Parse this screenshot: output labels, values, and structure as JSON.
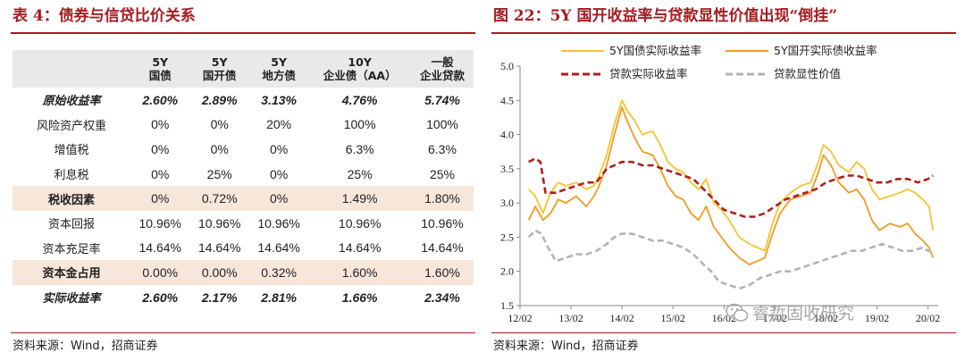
{
  "left_panel": {
    "title": "表 4：债券与信贷比价关系",
    "source": "资料来源：Wind，招商证券",
    "table": {
      "headers": [
        [
          "",
          ""
        ],
        [
          "5Y",
          "国债"
        ],
        [
          "5Y",
          "国开债"
        ],
        [
          "5Y",
          "地方债"
        ],
        [
          "10Y",
          "企业债（AA）"
        ],
        [
          "一般",
          "企业贷款"
        ]
      ],
      "rows": [
        {
          "label": "原始收益率",
          "style": "bold-it",
          "cells": [
            "2.60%",
            "2.89%",
            "3.13%",
            "4.76%",
            "5.74%"
          ]
        },
        {
          "label": "风险资产权重",
          "style": "",
          "cells": [
            "0%",
            "0%",
            "20%",
            "100%",
            "100%"
          ]
        },
        {
          "label": "增值税",
          "style": "",
          "cells": [
            "0%",
            "0%",
            "0%",
            "6.3%",
            "6.3%"
          ]
        },
        {
          "label": "利息税",
          "style": "",
          "cells": [
            "0%",
            "25%",
            "0%",
            "25%",
            "25%"
          ]
        },
        {
          "label": "税收因素",
          "style": "shaded",
          "cells": [
            "0%",
            "0.72%",
            "0%",
            "1.49%",
            "1.80%"
          ]
        },
        {
          "label": "资本回报",
          "style": "",
          "cells": [
            "10.96%",
            "10.96%",
            "10.96%",
            "10.96%",
            "10.96%"
          ]
        },
        {
          "label": "资本充足率",
          "style": "",
          "cells": [
            "14.64%",
            "14.64%",
            "14.64%",
            "14.64%",
            "14.64%"
          ]
        },
        {
          "label": "资本金占用",
          "style": "shaded",
          "cells": [
            "0.00%",
            "0.00%",
            "0.32%",
            "1.60%",
            "1.60%"
          ]
        },
        {
          "label": "实际收益率",
          "style": "bold-it",
          "cells": [
            "2.60%",
            "2.17%",
            "2.81%",
            "1.66%",
            "2.34%"
          ]
        }
      ]
    }
  },
  "right_panel": {
    "title": "图 22：5Y 国开收益率与贷款显性价值出现“倒挂”",
    "source": "资料来源：Wind，招商证券",
    "watermark": "睿哲固收研究",
    "chart_data": {
      "type": "line",
      "x_ticks": [
        "12/02",
        "13/02",
        "14/02",
        "15/02",
        "16/02",
        "17/02",
        "18/02",
        "19/02",
        "20/02"
      ],
      "ylim": [
        1.5,
        5.0
      ],
      "y_ticks": [
        "1.5",
        "2.0",
        "2.5",
        "3.0",
        "3.5",
        "4.0",
        "4.5",
        "5.0"
      ],
      "legend_placement": "top",
      "grid": false,
      "series": [
        {
          "name": "5Y国债实际收益率",
          "color": "#f5c431",
          "dash": "solid",
          "values": [
            [
              2012.17,
              3.2
            ],
            [
              2012.3,
              3.1
            ],
            [
              2012.45,
              2.85
            ],
            [
              2012.6,
              3.15
            ],
            [
              2012.75,
              3.3
            ],
            [
              2012.9,
              3.25
            ],
            [
              2013.1,
              3.3
            ],
            [
              2013.3,
              3.2
            ],
            [
              2013.45,
              3.25
            ],
            [
              2013.55,
              3.4
            ],
            [
              2013.7,
              3.7
            ],
            [
              2013.85,
              4.15
            ],
            [
              2014.0,
              4.5
            ],
            [
              2014.1,
              4.35
            ],
            [
              2014.25,
              4.2
            ],
            [
              2014.4,
              4.0
            ],
            [
              2014.6,
              4.05
            ],
            [
              2014.75,
              3.85
            ],
            [
              2014.9,
              3.6
            ],
            [
              2015.05,
              3.5
            ],
            [
              2015.2,
              3.45
            ],
            [
              2015.35,
              3.3
            ],
            [
              2015.5,
              3.2
            ],
            [
              2015.65,
              3.35
            ],
            [
              2015.8,
              3.0
            ],
            [
              2015.95,
              2.9
            ],
            [
              2016.1,
              2.75
            ],
            [
              2016.3,
              2.5
            ],
            [
              2016.5,
              2.4
            ],
            [
              2016.65,
              2.35
            ],
            [
              2016.8,
              2.3
            ],
            [
              2016.95,
              2.7
            ],
            [
              2017.1,
              3.0
            ],
            [
              2017.3,
              3.15
            ],
            [
              2017.5,
              3.25
            ],
            [
              2017.7,
              3.3
            ],
            [
              2017.85,
              3.6
            ],
            [
              2017.95,
              3.85
            ],
            [
              2018.1,
              3.75
            ],
            [
              2018.25,
              3.55
            ],
            [
              2018.45,
              3.45
            ],
            [
              2018.6,
              3.6
            ],
            [
              2018.75,
              3.5
            ],
            [
              2018.9,
              3.2
            ],
            [
              2019.05,
              3.05
            ],
            [
              2019.25,
              3.1
            ],
            [
              2019.45,
              3.15
            ],
            [
              2019.6,
              3.2
            ],
            [
              2019.75,
              3.15
            ],
            [
              2019.9,
              3.05
            ],
            [
              2020.02,
              2.95
            ],
            [
              2020.1,
              2.6
            ]
          ]
        },
        {
          "name": "5Y国开实际债收益率",
          "color": "#f29a22",
          "dash": "solid",
          "values": [
            [
              2012.17,
              2.75
            ],
            [
              2012.3,
              2.95
            ],
            [
              2012.45,
              2.75
            ],
            [
              2012.6,
              2.85
            ],
            [
              2012.75,
              3.05
            ],
            [
              2012.9,
              3.0
            ],
            [
              2013.1,
              3.1
            ],
            [
              2013.3,
              2.95
            ],
            [
              2013.45,
              3.1
            ],
            [
              2013.55,
              3.25
            ],
            [
              2013.7,
              3.55
            ],
            [
              2013.85,
              4.0
            ],
            [
              2014.0,
              4.4
            ],
            [
              2014.1,
              4.2
            ],
            [
              2014.25,
              3.95
            ],
            [
              2014.4,
              3.75
            ],
            [
              2014.6,
              3.7
            ],
            [
              2014.75,
              3.5
            ],
            [
              2014.9,
              3.25
            ],
            [
              2015.05,
              3.1
            ],
            [
              2015.2,
              3.05
            ],
            [
              2015.35,
              2.85
            ],
            [
              2015.5,
              2.75
            ],
            [
              2015.65,
              2.95
            ],
            [
              2015.8,
              2.65
            ],
            [
              2015.95,
              2.5
            ],
            [
              2016.1,
              2.35
            ],
            [
              2016.3,
              2.2
            ],
            [
              2016.5,
              2.1
            ],
            [
              2016.65,
              2.15
            ],
            [
              2016.8,
              2.2
            ],
            [
              2016.95,
              2.55
            ],
            [
              2017.1,
              2.85
            ],
            [
              2017.3,
              3.05
            ],
            [
              2017.5,
              3.1
            ],
            [
              2017.7,
              3.15
            ],
            [
              2017.85,
              3.45
            ],
            [
              2017.95,
              3.7
            ],
            [
              2018.1,
              3.55
            ],
            [
              2018.25,
              3.3
            ],
            [
              2018.45,
              3.15
            ],
            [
              2018.6,
              3.2
            ],
            [
              2018.75,
              3.05
            ],
            [
              2018.9,
              2.75
            ],
            [
              2019.05,
              2.6
            ],
            [
              2019.25,
              2.7
            ],
            [
              2019.45,
              2.65
            ],
            [
              2019.6,
              2.7
            ],
            [
              2019.75,
              2.55
            ],
            [
              2019.9,
              2.45
            ],
            [
              2020.02,
              2.35
            ],
            [
              2020.1,
              2.2
            ]
          ]
        },
        {
          "name": "贷款实际收益率",
          "color": "#b01e1e",
          "dash": "dashed",
          "values": [
            [
              2012.17,
              3.6
            ],
            [
              2012.3,
              3.65
            ],
            [
              2012.4,
              3.6
            ],
            [
              2012.5,
              3.15
            ],
            [
              2012.7,
              3.15
            ],
            [
              2012.9,
              3.2
            ],
            [
              2013.1,
              3.25
            ],
            [
              2013.3,
              3.3
            ],
            [
              2013.5,
              3.3
            ],
            [
              2013.7,
              3.5
            ],
            [
              2013.85,
              3.55
            ],
            [
              2014.0,
              3.6
            ],
            [
              2014.2,
              3.6
            ],
            [
              2014.4,
              3.55
            ],
            [
              2014.6,
              3.55
            ],
            [
              2014.8,
              3.5
            ],
            [
              2015.0,
              3.45
            ],
            [
              2015.2,
              3.4
            ],
            [
              2015.4,
              3.35
            ],
            [
              2015.6,
              3.2
            ],
            [
              2015.8,
              3.05
            ],
            [
              2016.0,
              2.9
            ],
            [
              2016.2,
              2.85
            ],
            [
              2016.4,
              2.8
            ],
            [
              2016.6,
              2.8
            ],
            [
              2016.8,
              2.85
            ],
            [
              2017.0,
              2.95
            ],
            [
              2017.2,
              3.05
            ],
            [
              2017.4,
              3.1
            ],
            [
              2017.6,
              3.15
            ],
            [
              2017.8,
              3.2
            ],
            [
              2018.0,
              3.3
            ],
            [
              2018.2,
              3.35
            ],
            [
              2018.4,
              3.4
            ],
            [
              2018.6,
              3.4
            ],
            [
              2018.8,
              3.35
            ],
            [
              2019.0,
              3.3
            ],
            [
              2019.2,
              3.3
            ],
            [
              2019.4,
              3.35
            ],
            [
              2019.6,
              3.35
            ],
            [
              2019.8,
              3.3
            ],
            [
              2020.0,
              3.35
            ],
            [
              2020.1,
              3.4
            ]
          ]
        },
        {
          "name": "贷款显性价值",
          "color": "#b3b3b3",
          "dash": "dashed",
          "values": [
            [
              2012.17,
              2.5
            ],
            [
              2012.3,
              2.6
            ],
            [
              2012.42,
              2.55
            ],
            [
              2012.55,
              2.35
            ],
            [
              2012.7,
              2.15
            ],
            [
              2012.9,
              2.2
            ],
            [
              2013.1,
              2.25
            ],
            [
              2013.3,
              2.25
            ],
            [
              2013.5,
              2.3
            ],
            [
              2013.7,
              2.4
            ],
            [
              2013.85,
              2.5
            ],
            [
              2014.0,
              2.55
            ],
            [
              2014.2,
              2.55
            ],
            [
              2014.4,
              2.5
            ],
            [
              2014.6,
              2.45
            ],
            [
              2014.8,
              2.45
            ],
            [
              2015.0,
              2.4
            ],
            [
              2015.2,
              2.35
            ],
            [
              2015.4,
              2.25
            ],
            [
              2015.6,
              2.1
            ],
            [
              2015.75,
              2.0
            ],
            [
              2015.9,
              1.85
            ],
            [
              2016.1,
              1.8
            ],
            [
              2016.3,
              1.75
            ],
            [
              2016.5,
              1.8
            ],
            [
              2016.7,
              1.9
            ],
            [
              2016.9,
              1.95
            ],
            [
              2017.1,
              2.0
            ],
            [
              2017.3,
              2.0
            ],
            [
              2017.5,
              2.05
            ],
            [
              2017.7,
              2.1
            ],
            [
              2017.9,
              2.15
            ],
            [
              2018.1,
              2.2
            ],
            [
              2018.3,
              2.25
            ],
            [
              2018.5,
              2.3
            ],
            [
              2018.7,
              2.3
            ],
            [
              2018.9,
              2.35
            ],
            [
              2019.1,
              2.4
            ],
            [
              2019.3,
              2.35
            ],
            [
              2019.5,
              2.3
            ],
            [
              2019.7,
              2.3
            ],
            [
              2019.9,
              2.35
            ],
            [
              2020.0,
              2.3
            ],
            [
              2020.1,
              2.3
            ]
          ]
        }
      ]
    }
  }
}
